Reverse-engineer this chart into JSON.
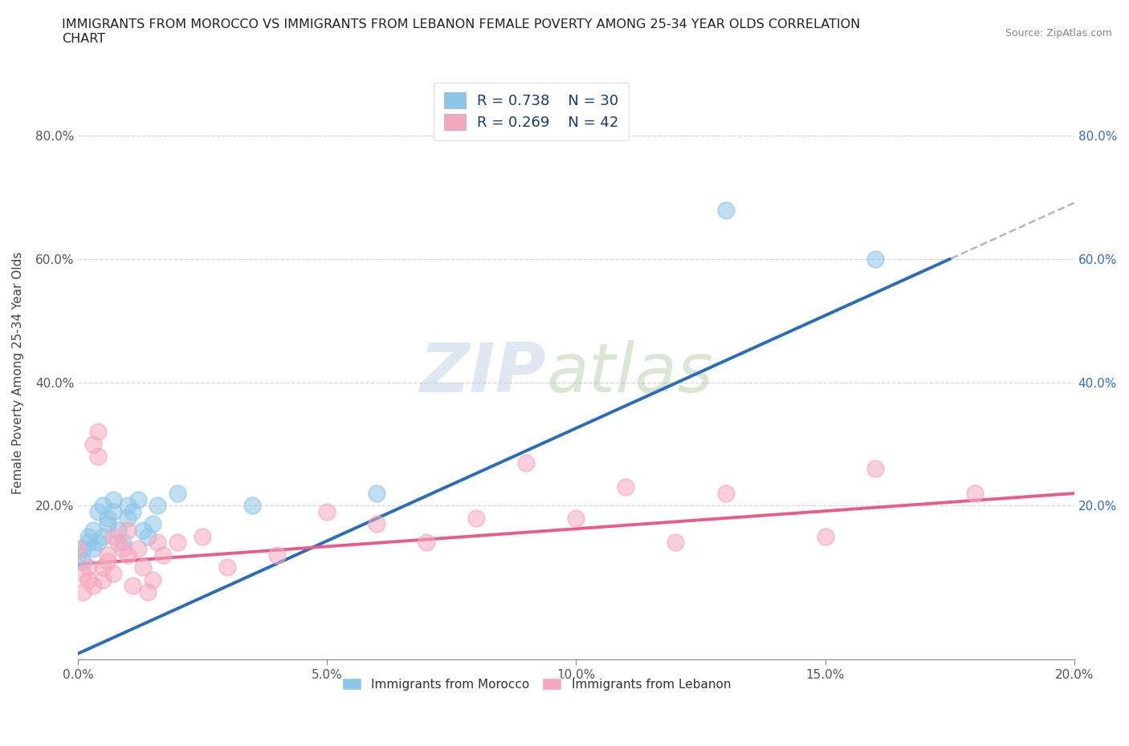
{
  "title": "IMMIGRANTS FROM MOROCCO VS IMMIGRANTS FROM LEBANON FEMALE POVERTY AMONG 25-34 YEAR OLDS CORRELATION\nCHART",
  "source": "Source: ZipAtlas.com",
  "ylabel": "Female Poverty Among 25-34 Year Olds",
  "xlim": [
    0.0,
    0.2
  ],
  "ylim": [
    -0.05,
    0.88
  ],
  "watermark_zip": "ZIP",
  "watermark_atlas": "atlas",
  "legend_r1": "R = 0.738",
  "legend_n1": "N = 30",
  "legend_r2": "R = 0.269",
  "legend_n2": "N = 42",
  "morocco_color": "#8ec6e8",
  "lebanon_color": "#f4a8be",
  "morocco_line_color": "#2b6cb8",
  "lebanon_line_color": "#e85b8a",
  "morocco_scatter": [
    [
      0.0,
      0.12
    ],
    [
      0.001,
      0.13
    ],
    [
      0.001,
      0.11
    ],
    [
      0.002,
      0.14
    ],
    [
      0.002,
      0.15
    ],
    [
      0.003,
      0.13
    ],
    [
      0.003,
      0.16
    ],
    [
      0.004,
      0.14
    ],
    [
      0.004,
      0.19
    ],
    [
      0.005,
      0.15
    ],
    [
      0.005,
      0.2
    ],
    [
      0.006,
      0.18
    ],
    [
      0.006,
      0.17
    ],
    [
      0.007,
      0.19
    ],
    [
      0.007,
      0.21
    ],
    [
      0.008,
      0.16
    ],
    [
      0.009,
      0.14
    ],
    [
      0.01,
      0.18
    ],
    [
      0.01,
      0.2
    ],
    [
      0.011,
      0.19
    ],
    [
      0.012,
      0.21
    ],
    [
      0.013,
      0.16
    ],
    [
      0.014,
      0.15
    ],
    [
      0.015,
      0.17
    ],
    [
      0.016,
      0.2
    ],
    [
      0.02,
      0.22
    ],
    [
      0.035,
      0.2
    ],
    [
      0.06,
      0.22
    ],
    [
      0.13,
      0.68
    ],
    [
      0.16,
      0.6
    ]
  ],
  "lebanon_scatter": [
    [
      0.0,
      0.13
    ],
    [
      0.001,
      0.09
    ],
    [
      0.001,
      0.06
    ],
    [
      0.002,
      0.08
    ],
    [
      0.002,
      0.1
    ],
    [
      0.003,
      0.07
    ],
    [
      0.003,
      0.3
    ],
    [
      0.004,
      0.28
    ],
    [
      0.004,
      0.32
    ],
    [
      0.005,
      0.08
    ],
    [
      0.005,
      0.1
    ],
    [
      0.006,
      0.12
    ],
    [
      0.006,
      0.11
    ],
    [
      0.007,
      0.15
    ],
    [
      0.007,
      0.09
    ],
    [
      0.008,
      0.14
    ],
    [
      0.009,
      0.13
    ],
    [
      0.01,
      0.16
    ],
    [
      0.01,
      0.12
    ],
    [
      0.011,
      0.07
    ],
    [
      0.012,
      0.13
    ],
    [
      0.013,
      0.1
    ],
    [
      0.014,
      0.06
    ],
    [
      0.015,
      0.08
    ],
    [
      0.016,
      0.14
    ],
    [
      0.017,
      0.12
    ],
    [
      0.02,
      0.14
    ],
    [
      0.025,
      0.15
    ],
    [
      0.03,
      0.1
    ],
    [
      0.04,
      0.12
    ],
    [
      0.05,
      0.19
    ],
    [
      0.06,
      0.17
    ],
    [
      0.07,
      0.14
    ],
    [
      0.08,
      0.18
    ],
    [
      0.09,
      0.27
    ],
    [
      0.1,
      0.18
    ],
    [
      0.11,
      0.23
    ],
    [
      0.12,
      0.14
    ],
    [
      0.13,
      0.22
    ],
    [
      0.15,
      0.15
    ],
    [
      0.16,
      0.26
    ],
    [
      0.18,
      0.22
    ]
  ],
  "xtick_labels": [
    "0.0%",
    "5.0%",
    "10.0%",
    "15.0%",
    "20.0%"
  ],
  "xtick_vals": [
    0.0,
    0.05,
    0.1,
    0.15,
    0.2
  ],
  "ytick_labels": [
    "20.0%",
    "40.0%",
    "60.0%",
    "80.0%"
  ],
  "ytick_vals": [
    0.2,
    0.4,
    0.6,
    0.8
  ],
  "right_ytick_labels": [
    "20.0%",
    "40.0%",
    "60.0%",
    "80.0%"
  ],
  "right_ytick_vals": [
    0.2,
    0.4,
    0.6,
    0.8
  ],
  "legend1_label": "Immigrants from Morocco",
  "legend2_label": "Immigrants from Lebanon"
}
